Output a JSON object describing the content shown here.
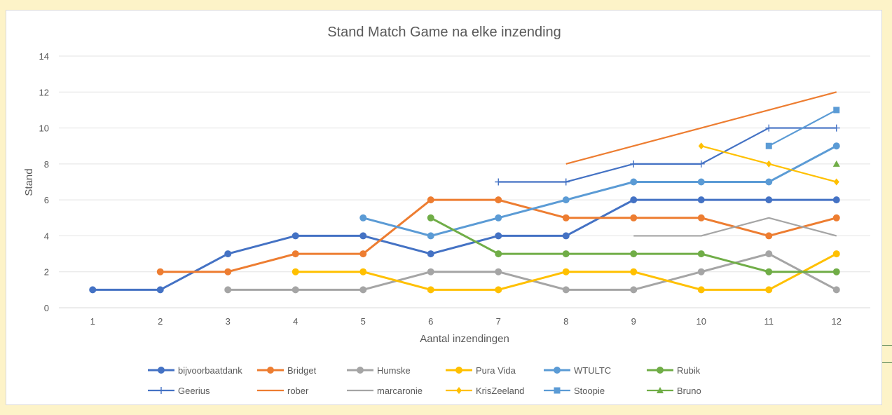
{
  "chart_data": {
    "type": "line",
    "title": "Stand Match Game na elke inzending",
    "xlabel": "Aantal inzendingen",
    "ylabel": "Stand",
    "categories": [
      "1",
      "2",
      "3",
      "4",
      "5",
      "6",
      "7",
      "8",
      "9",
      "10",
      "11",
      "12"
    ],
    "ylim": [
      0,
      14
    ],
    "yticks": [
      0,
      2,
      4,
      6,
      8,
      10,
      12,
      14
    ],
    "grid": true,
    "legend_position": "bottom",
    "series": [
      {
        "name": "bijvoorbaatdank",
        "color": "#4472c4",
        "marker": "circle",
        "values": [
          1,
          1,
          3,
          4,
          4,
          3,
          4,
          4,
          6,
          6,
          6,
          6
        ]
      },
      {
        "name": "Bridget",
        "color": "#ed7d31",
        "marker": "circle",
        "values": [
          null,
          2,
          2,
          3,
          3,
          6,
          6,
          5,
          5,
          5,
          4,
          5
        ]
      },
      {
        "name": "Humske",
        "color": "#a5a5a5",
        "marker": "circle",
        "values": [
          null,
          null,
          1,
          1,
          1,
          2,
          2,
          1,
          1,
          2,
          3,
          1
        ]
      },
      {
        "name": "Pura Vida",
        "color": "#ffc000",
        "marker": "circle",
        "values": [
          null,
          null,
          null,
          2,
          2,
          1,
          1,
          2,
          2,
          1,
          1,
          3
        ]
      },
      {
        "name": "WTULTC",
        "color": "#5b9bd5",
        "marker": "circle",
        "values": [
          null,
          null,
          null,
          null,
          5,
          4,
          5,
          6,
          7,
          7,
          7,
          9
        ]
      },
      {
        "name": "Rubik",
        "color": "#70ad47",
        "marker": "circle",
        "values": [
          null,
          null,
          null,
          null,
          null,
          5,
          3,
          3,
          3,
          3,
          2,
          2
        ]
      },
      {
        "name": "Geerius",
        "color": "#4472c4",
        "marker": "plus",
        "values": [
          null,
          null,
          null,
          null,
          null,
          null,
          7,
          7,
          8,
          8,
          10,
          10
        ]
      },
      {
        "name": "rober",
        "color": "#ed7d31",
        "marker": "none",
        "values": [
          null,
          null,
          null,
          null,
          null,
          null,
          null,
          8,
          9,
          10,
          11,
          12
        ]
      },
      {
        "name": "marcaronie",
        "color": "#a5a5a5",
        "marker": "none",
        "values": [
          null,
          null,
          null,
          null,
          null,
          null,
          null,
          null,
          4,
          4,
          5,
          4
        ]
      },
      {
        "name": "KrisZeeland",
        "color": "#ffc000",
        "marker": "diamond",
        "values": [
          null,
          null,
          null,
          null,
          null,
          null,
          null,
          null,
          null,
          9,
          8,
          7
        ]
      },
      {
        "name": "Stoopie",
        "color": "#5b9bd5",
        "marker": "square",
        "values": [
          null,
          null,
          null,
          null,
          null,
          null,
          null,
          null,
          null,
          null,
          9,
          11
        ]
      },
      {
        "name": "Bruno",
        "color": "#70ad47",
        "marker": "triangle",
        "values": [
          null,
          null,
          null,
          null,
          null,
          null,
          null,
          null,
          null,
          null,
          null,
          8
        ]
      }
    ]
  }
}
